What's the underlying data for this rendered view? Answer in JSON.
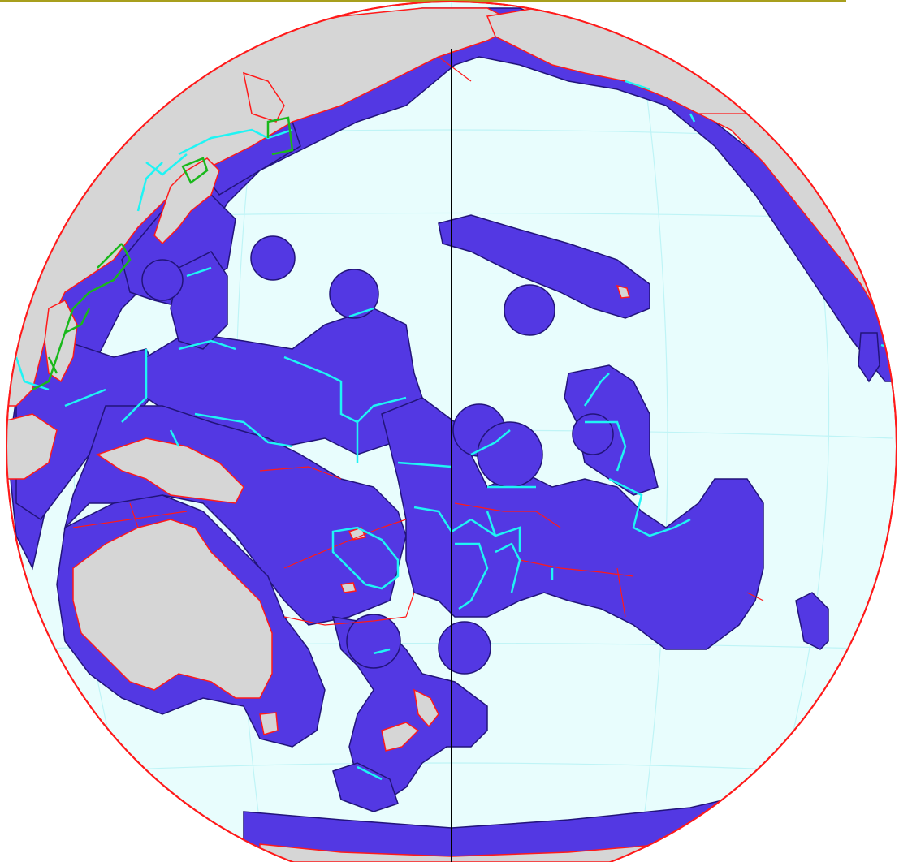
{
  "map": {
    "projection": "orthographic",
    "colors": {
      "ocean": "#e8fdfd",
      "graticule": "#bff4f6",
      "eez_fill": "#5338e3",
      "eez_outline": "#22147a",
      "land": "#d6d6d6",
      "coastline": "#ff1a1a",
      "maritime_boundary_cyan": "#1ff4f4",
      "maritime_boundary_green": "#19b81b",
      "dateline": "#000000",
      "top_rule": "#a89f1d"
    }
  }
}
